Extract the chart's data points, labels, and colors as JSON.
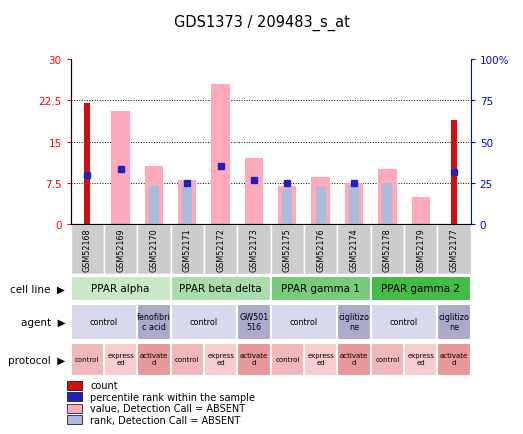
{
  "title": "GDS1373 / 209483_s_at",
  "samples": [
    "GSM52168",
    "GSM52169",
    "GSM52170",
    "GSM52171",
    "GSM52172",
    "GSM52173",
    "GSM52175",
    "GSM52176",
    "GSM52174",
    "GSM52178",
    "GSM52179",
    "GSM52177"
  ],
  "count_values": [
    22.0,
    0,
    0,
    0,
    0,
    0,
    0,
    0,
    0,
    0,
    0,
    19.0
  ],
  "pink_bar_values": [
    0,
    20.5,
    10.5,
    8.0,
    25.5,
    12.0,
    7.0,
    8.5,
    7.5,
    10.0,
    5.0,
    0
  ],
  "blue_dot_values": [
    9.0,
    10.0,
    0,
    7.5,
    10.5,
    8.0,
    7.5,
    0,
    7.5,
    0,
    0,
    9.5
  ],
  "light_blue_bar_values": [
    0,
    0,
    7.0,
    7.0,
    0,
    0,
    6.5,
    7.0,
    7.0,
    7.5,
    0,
    0
  ],
  "ylim_left": [
    0,
    30
  ],
  "ylim_right": [
    0,
    100
  ],
  "yticks_left": [
    0,
    7.5,
    15,
    22.5,
    30
  ],
  "ytick_labels_left": [
    "0",
    "7.5",
    "15",
    "22.5",
    "30"
  ],
  "yticks_right": [
    0,
    25,
    50,
    75,
    100
  ],
  "ytick_labels_right": [
    "0",
    "25",
    "50",
    "75",
    "100%"
  ],
  "cell_lines": [
    {
      "label": "PPAR alpha",
      "start": 0,
      "end": 3
    },
    {
      "label": "PPAR beta delta",
      "start": 3,
      "end": 6
    },
    {
      "label": "PPAR gamma 1",
      "start": 6,
      "end": 9
    },
    {
      "label": "PPAR gamma 2",
      "start": 9,
      "end": 12
    }
  ],
  "cell_line_colors": [
    "#c8e8c8",
    "#aadcaa",
    "#77cc77",
    "#44bb44"
  ],
  "agents": [
    {
      "label": "control",
      "start": 0,
      "end": 2,
      "dark": false
    },
    {
      "label": "fenofibri\nc acid",
      "start": 2,
      "end": 3,
      "dark": true
    },
    {
      "label": "control",
      "start": 3,
      "end": 5,
      "dark": false
    },
    {
      "label": "GW501\n516",
      "start": 5,
      "end": 6,
      "dark": true
    },
    {
      "label": "control",
      "start": 6,
      "end": 8,
      "dark": false
    },
    {
      "label": "ciglitizo\nne",
      "start": 8,
      "end": 9,
      "dark": true
    },
    {
      "label": "control",
      "start": 9,
      "end": 11,
      "dark": false
    },
    {
      "label": "ciglitizo\nne",
      "start": 11,
      "end": 12,
      "dark": true
    }
  ],
  "agent_color_light": "#d8d8ee",
  "agent_color_dark": "#aaaacc",
  "protocols": [
    {
      "label": "control",
      "start": 0,
      "end": 1,
      "shade": 1
    },
    {
      "label": "express\ned",
      "start": 1,
      "end": 2,
      "shade": 2
    },
    {
      "label": "activate\nd",
      "start": 2,
      "end": 3,
      "shade": 3
    },
    {
      "label": "control",
      "start": 3,
      "end": 4,
      "shade": 1
    },
    {
      "label": "express\ned",
      "start": 4,
      "end": 5,
      "shade": 2
    },
    {
      "label": "activate\nd",
      "start": 5,
      "end": 6,
      "shade": 3
    },
    {
      "label": "control",
      "start": 6,
      "end": 7,
      "shade": 1
    },
    {
      "label": "express\ned",
      "start": 7,
      "end": 8,
      "shade": 2
    },
    {
      "label": "activate\nd",
      "start": 8,
      "end": 9,
      "shade": 3
    },
    {
      "label": "control",
      "start": 9,
      "end": 10,
      "shade": 1
    },
    {
      "label": "express\ned",
      "start": 10,
      "end": 11,
      "shade": 2
    },
    {
      "label": "activate\nd",
      "start": 11,
      "end": 12,
      "shade": 3
    }
  ],
  "proto_colors": [
    "#f0b8b8",
    "#f8cccc",
    "#e89898"
  ],
  "count_color": "#cc1111",
  "pink_color": "#ffaabb",
  "blue_color": "#2222bb",
  "light_blue_color": "#aabbdd",
  "grid_color": "#000000",
  "bg_color": "#ffffff",
  "sample_header_color": "#cccccc",
  "bar_width": 0.55
}
